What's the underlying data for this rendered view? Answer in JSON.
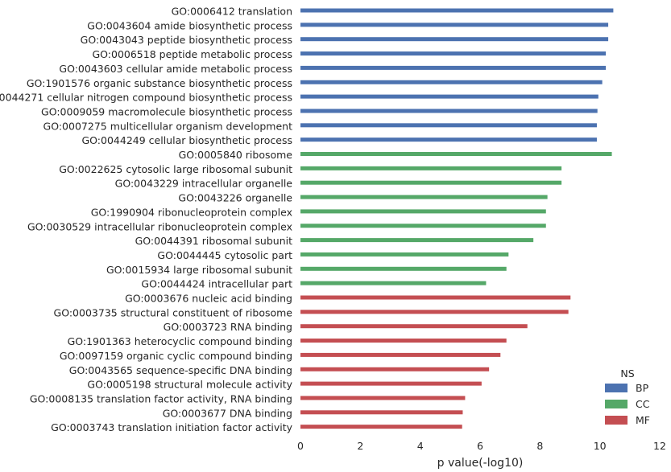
{
  "chart_data": {
    "type": "bar",
    "orientation": "horizontal",
    "xlabel": "p value(-log10)",
    "xlim": [
      0,
      12
    ],
    "xticks": [
      0,
      2,
      4,
      6,
      8,
      10,
      12
    ],
    "grid": false,
    "legend": {
      "title": "NS",
      "placement": "bottom-right",
      "entries": [
        {
          "name": "BP",
          "color": "#4c72b0"
        },
        {
          "name": "CC",
          "color": "#55a868"
        },
        {
          "name": "MF",
          "color": "#c44e52"
        }
      ]
    },
    "bars": [
      {
        "label": "GO:0006412 translation",
        "value": 10.45,
        "group": "BP"
      },
      {
        "label": "GO:0043604 amide biosynthetic process",
        "value": 10.28,
        "group": "BP"
      },
      {
        "label": "GO:0043043 peptide biosynthetic process",
        "value": 10.28,
        "group": "BP"
      },
      {
        "label": "GO:0006518 peptide metabolic process",
        "value": 10.2,
        "group": "BP"
      },
      {
        "label": "GO:0043603 cellular amide metabolic process",
        "value": 10.2,
        "group": "BP"
      },
      {
        "label": "GO:1901576 organic substance biosynthetic process",
        "value": 10.08,
        "group": "BP"
      },
      {
        "label": "GO:0044271 cellular nitrogen compound biosynthetic process",
        "value": 9.95,
        "group": "BP"
      },
      {
        "label": "GO:0009059 macromolecule biosynthetic process",
        "value": 9.92,
        "group": "BP"
      },
      {
        "label": "GO:0007275 multicellular organism development",
        "value": 9.9,
        "group": "BP"
      },
      {
        "label": "GO:0044249 cellular biosynthetic process",
        "value": 9.9,
        "group": "BP"
      },
      {
        "label": "GO:0005840 ribosome",
        "value": 10.4,
        "group": "CC"
      },
      {
        "label": "GO:0022625 cytosolic large ribosomal subunit",
        "value": 8.72,
        "group": "CC"
      },
      {
        "label": "GO:0043229 intracellular organelle",
        "value": 8.72,
        "group": "CC"
      },
      {
        "label": "GO:0043226 organelle",
        "value": 8.25,
        "group": "CC"
      },
      {
        "label": "GO:1990904 ribonucleoprotein complex",
        "value": 8.2,
        "group": "CC"
      },
      {
        "label": "GO:0030529 intracellular ribonucleoprotein complex",
        "value": 8.2,
        "group": "CC"
      },
      {
        "label": "GO:0044391 ribosomal subunit",
        "value": 7.78,
        "group": "CC"
      },
      {
        "label": "GO:0044445 cytosolic part",
        "value": 6.95,
        "group": "CC"
      },
      {
        "label": "GO:0015934 large ribosomal subunit",
        "value": 6.88,
        "group": "CC"
      },
      {
        "label": "GO:0044424 intracellular part",
        "value": 6.2,
        "group": "CC"
      },
      {
        "label": "GO:0003676 nucleic acid binding",
        "value": 9.02,
        "group": "MF"
      },
      {
        "label": "GO:0003735 structural constituent of ribosome",
        "value": 8.95,
        "group": "MF"
      },
      {
        "label": "GO:0003723 RNA binding",
        "value": 7.58,
        "group": "MF"
      },
      {
        "label": "GO:1901363 heterocyclic compound binding",
        "value": 6.88,
        "group": "MF"
      },
      {
        "label": "GO:0097159 organic cyclic compound binding",
        "value": 6.68,
        "group": "MF"
      },
      {
        "label": "GO:0043565 sequence-specific DNA binding",
        "value": 6.3,
        "group": "MF"
      },
      {
        "label": "GO:0005198 structural molecule activity",
        "value": 6.05,
        "group": "MF"
      },
      {
        "label": "GO:0008135 translation factor activity, RNA binding",
        "value": 5.5,
        "group": "MF"
      },
      {
        "label": "GO:0003677 DNA binding",
        "value": 5.42,
        "group": "MF"
      },
      {
        "label": "GO:0003743 translation initiation factor activity",
        "value": 5.4,
        "group": "MF"
      }
    ]
  }
}
